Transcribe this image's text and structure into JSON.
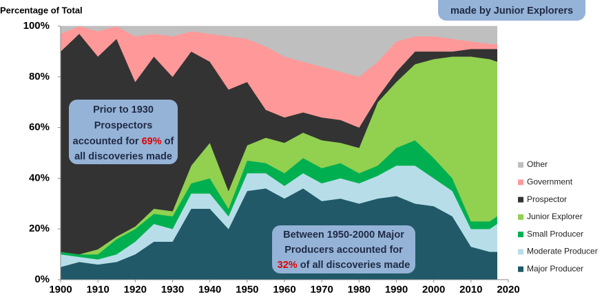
{
  "chart_data": {
    "type": "stacked_area",
    "y_label": "Percentage of Total",
    "x": [
      1900,
      1905,
      1910,
      1915,
      1920,
      1925,
      1930,
      1935,
      1940,
      1945,
      1950,
      1955,
      1960,
      1965,
      1970,
      1975,
      1980,
      1985,
      1990,
      1995,
      2000,
      2005,
      2010,
      2015,
      2017
    ],
    "series": [
      {
        "name": "Major Producer",
        "color": "#215968",
        "values": [
          5,
          7,
          6,
          7,
          10,
          15,
          15,
          28,
          28,
          20,
          35,
          36,
          32,
          36,
          31,
          32,
          30,
          32,
          33,
          30,
          29,
          25,
          13,
          11,
          11
        ]
      },
      {
        "name": "Moderate Producer",
        "color": "#b7dee8",
        "values": [
          5,
          2,
          2,
          3,
          5,
          7,
          5,
          6,
          6,
          5,
          7,
          6,
          5,
          6,
          7,
          8,
          8,
          9,
          12,
          15,
          11,
          10,
          7,
          9,
          11
        ]
      },
      {
        "name": "Small Producer",
        "color": "#00b050",
        "values": [
          1,
          1,
          2,
          6,
          5,
          4,
          5,
          4,
          6,
          3,
          5,
          4,
          5,
          6,
          6,
          6,
          4,
          4,
          7,
          10,
          8,
          5,
          3,
          3,
          3
        ]
      },
      {
        "name": "Junior Explorer",
        "color": "#92d050",
        "values": [
          0,
          0,
          2,
          1,
          1,
          2,
          2,
          7,
          14,
          7,
          6,
          10,
          12,
          10,
          11,
          8,
          10,
          25,
          26,
          30,
          39,
          48,
          65,
          64,
          61
        ]
      },
      {
        "name": "Prospector",
        "color": "#333333",
        "values": [
          79,
          87,
          76,
          78,
          57,
          60,
          53,
          45,
          32,
          40,
          25,
          11,
          10,
          8,
          9,
          9,
          8,
          2,
          4,
          5,
          3,
          2,
          3,
          4,
          5
        ]
      },
      {
        "name": "Government",
        "color": "#ff9999",
        "values": [
          7,
          3,
          10,
          5,
          18,
          9,
          16,
          8,
          11,
          21,
          17,
          25,
          24,
          20,
          20,
          19,
          20,
          14,
          12,
          6,
          6,
          5,
          3,
          2,
          2
        ]
      },
      {
        "name": "Other",
        "color": "#bfbfbf",
        "values": [
          3,
          0,
          2,
          0,
          4,
          3,
          4,
          2,
          3,
          4,
          5,
          8,
          12,
          14,
          16,
          18,
          20,
          14,
          6,
          4,
          4,
          5,
          6,
          7,
          7
        ]
      }
    ],
    "xlim": [
      1900,
      2020
    ],
    "xticks": [
      1900,
      1910,
      1920,
      1930,
      1940,
      1950,
      1960,
      1970,
      1980,
      1990,
      2000,
      2010,
      2020
    ],
    "ylim": [
      0,
      100
    ],
    "yticks": [
      {
        "value": 0,
        "label": "0%"
      },
      {
        "value": 20,
        "label": "20%"
      },
      {
        "value": 40,
        "label": "40%"
      },
      {
        "value": 60,
        "label": "60%"
      },
      {
        "value": 80,
        "label": "80%"
      },
      {
        "value": 100,
        "label": "100%"
      }
    ],
    "annotations": [
      {
        "lines": [
          [
            "Prior to 1930"
          ],
          [
            "Prospectors"
          ],
          [
            "accounted for ",
            "69%",
            " of"
          ],
          [
            "all discoveries made"
          ]
        ]
      },
      {
        "lines": [
          [
            "Between 1950-2000 Major"
          ],
          [
            "Producers accounted for"
          ],
          [
            "32%",
            " of all discoveries made"
          ]
        ]
      },
      {
        "lines": [
          [
            "made by Junior Explorers"
          ]
        ]
      }
    ]
  }
}
